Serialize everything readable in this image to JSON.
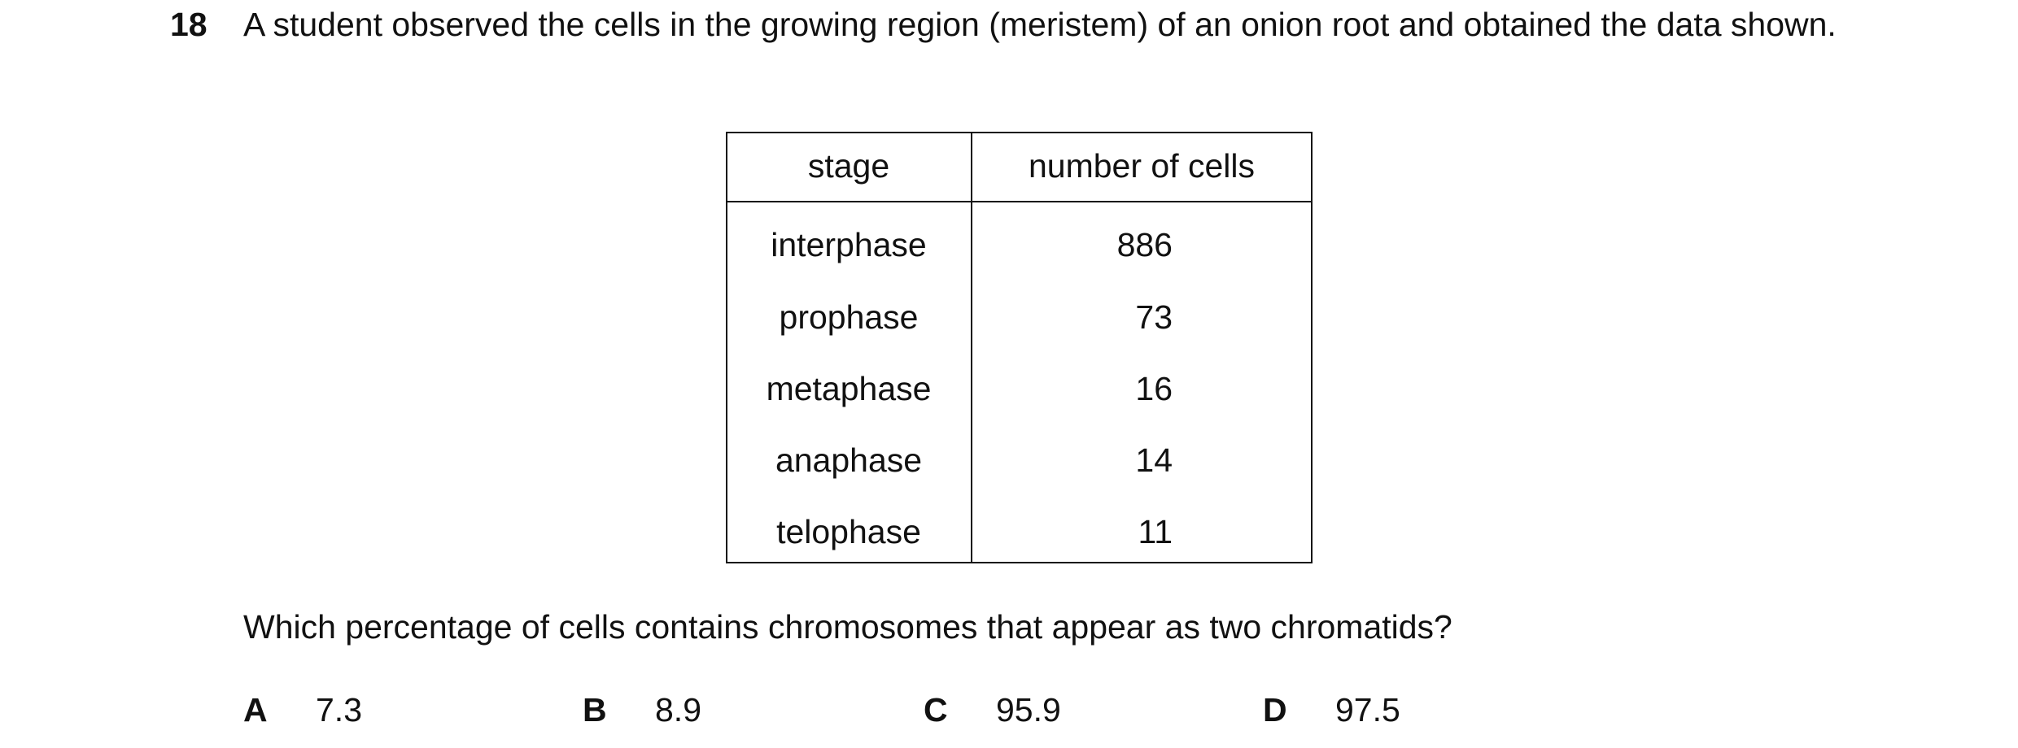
{
  "question": {
    "number": "18",
    "text": "A student observed the cells in the growing region (meristem) of an onion root and obtained the data shown.",
    "prompt": "Which percentage of cells contains chromosomes that appear as two chromatids?"
  },
  "table": {
    "header": [
      "stage",
      "number of cells"
    ],
    "rows": [
      [
        "interphase",
        886
      ],
      [
        "prophase",
        73
      ],
      [
        "metaphase",
        16
      ],
      [
        "anaphase",
        14
      ],
      [
        "telophase",
        11
      ]
    ]
  },
  "options": [
    {
      "letter": "A",
      "text": "7.3"
    },
    {
      "letter": "B",
      "text": "8.9"
    },
    {
      "letter": "C",
      "text": "95.9"
    },
    {
      "letter": "D",
      "text": "97.5"
    }
  ]
}
